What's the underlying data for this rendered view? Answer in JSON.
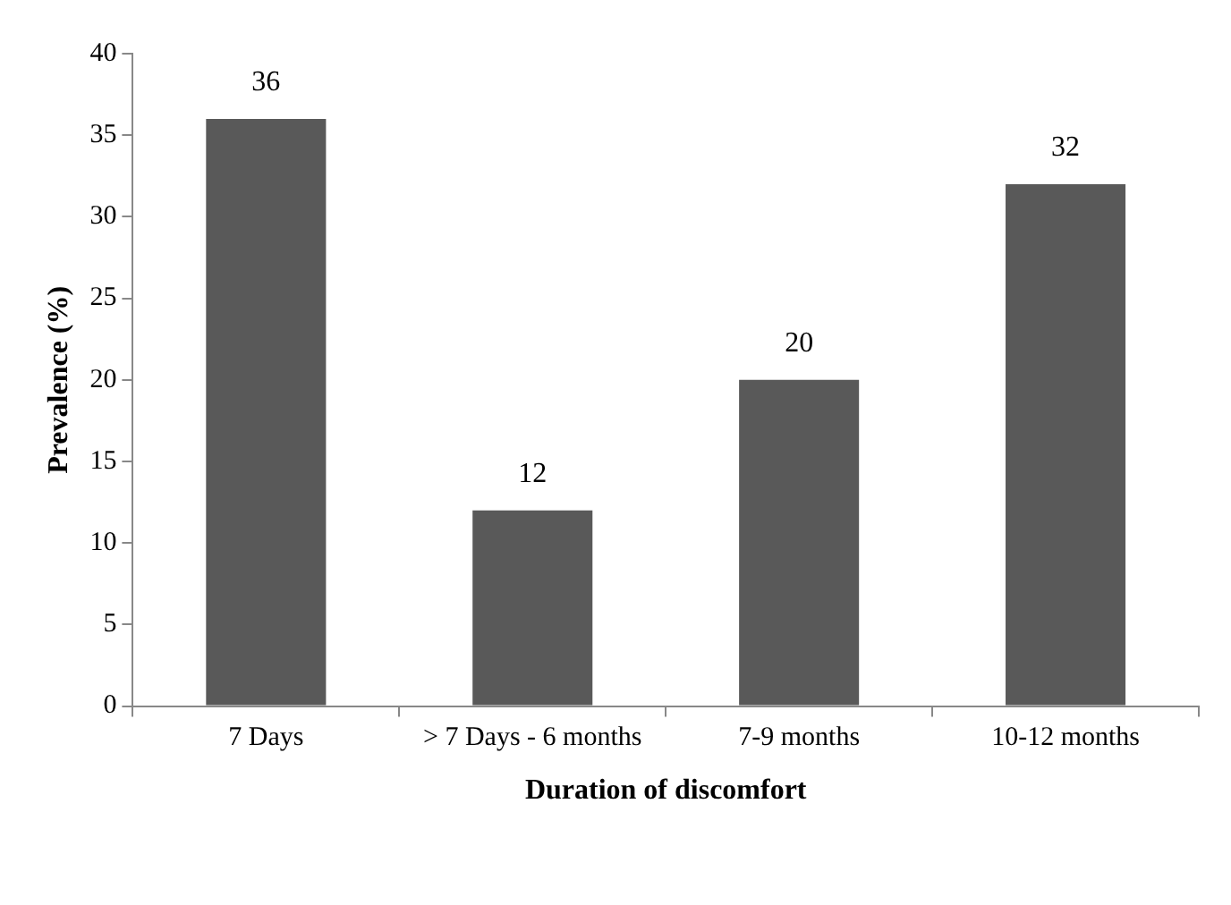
{
  "chart_data": {
    "type": "bar",
    "categories": [
      "7 Days",
      "> 7 Days - 6 months",
      "7-9 months",
      "10-12 months"
    ],
    "values": [
      36,
      12,
      20,
      32
    ],
    "color": "#595959",
    "xlabel": "Duration of discomfort",
    "ylabel": "Prevalence (%)",
    "ylim": [
      0,
      40
    ],
    "yticks": [
      0,
      5,
      10,
      15,
      20,
      25,
      30,
      35,
      40
    ],
    "data_labels": true,
    "grid": false,
    "legend": false
  }
}
